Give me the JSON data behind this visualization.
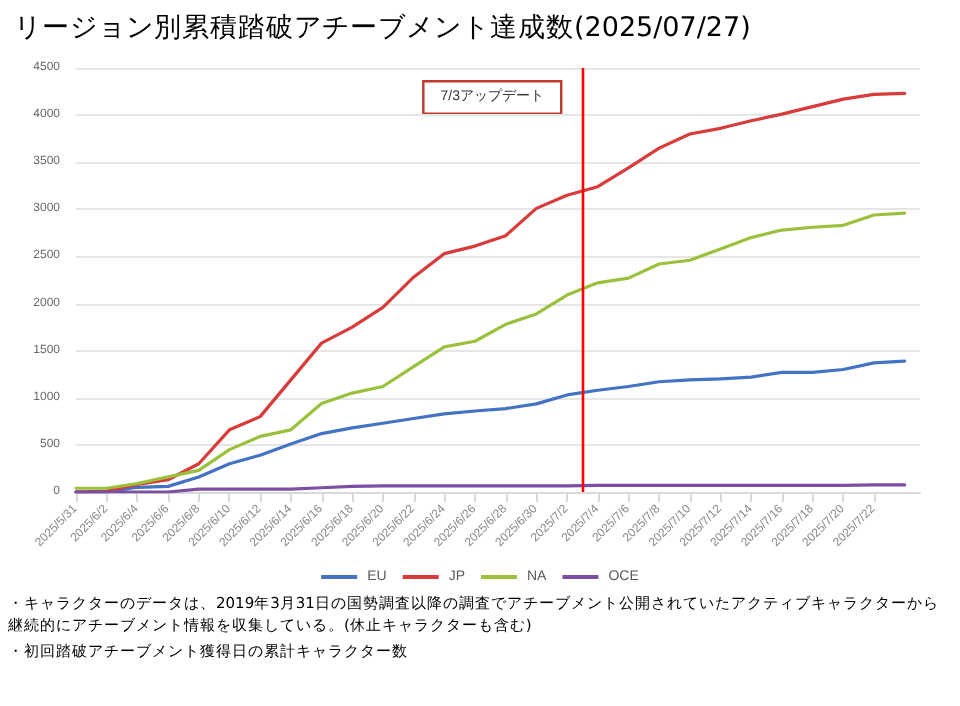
{
  "chart_data": {
    "type": "line",
    "title": "リージョン別累積踏破アチーブメント達成数(2025/07/27)",
    "x": [
      "2025-05-31",
      "2025-06-02",
      "2025-06-04",
      "2025-06-06",
      "2025-06-08",
      "2025-06-10",
      "2025-06-12",
      "2025-06-14",
      "2025-06-16",
      "2025-06-18",
      "2025-06-20",
      "2025-06-22",
      "2025-06-24",
      "2025-06-26",
      "2025-06-28",
      "2025-06-30",
      "2025-07-02",
      "2025-07-04",
      "2025-07-06",
      "2025-07-08",
      "2025-07-10",
      "2025-07-12",
      "2025-07-14",
      "2025-07-16",
      "2025-07-18",
      "2025-07-20",
      "2025-07-22",
      "2025-07-24"
    ],
    "series": [
      {
        "name": "EU",
        "color": "#4472c4",
        "values": [
          0,
          0,
          50,
          60,
          160,
          300,
          390,
          510,
          620,
          680,
          730,
          780,
          830,
          860,
          885,
          935,
          1030,
          1080,
          1120,
          1170,
          1190,
          1200,
          1220,
          1270,
          1270,
          1300,
          1370,
          1390
        ]
      },
      {
        "name": "JP",
        "color": "#d93a3a",
        "values": [
          0,
          10,
          80,
          130,
          300,
          660,
          800,
          1190,
          1580,
          1750,
          1960,
          2280,
          2530,
          2610,
          2720,
          3010,
          3150,
          3240,
          3440,
          3650,
          3800,
          3860,
          3940,
          4010,
          4090,
          4170,
          4220,
          4230
        ]
      },
      {
        "name": "NA",
        "color": "#9bc13c",
        "values": [
          40,
          40,
          90,
          160,
          230,
          450,
          590,
          660,
          940,
          1050,
          1120,
          1330,
          1540,
          1600,
          1780,
          1890,
          2090,
          2220,
          2270,
          2420,
          2460,
          2580,
          2700,
          2780,
          2810,
          2830,
          2940,
          2960
        ]
      },
      {
        "name": "OCE",
        "color": "#7b4fa3",
        "values": [
          0,
          0,
          0,
          0,
          30,
          30,
          30,
          30,
          45,
          60,
          65,
          65,
          65,
          65,
          65,
          65,
          65,
          70,
          70,
          70,
          70,
          70,
          70,
          70,
          70,
          70,
          75,
          75
        ]
      }
    ],
    "xlim": [
      "2025-05-31",
      "2025-07-25"
    ],
    "xticks": [
      {
        "value": "2025-05-31",
        "label": "2025/5/31"
      },
      {
        "value": "2025-06-02",
        "label": "2025/6/2"
      },
      {
        "value": "2025-06-04",
        "label": "2025/6/4"
      },
      {
        "value": "2025-06-06",
        "label": "2025/6/6"
      },
      {
        "value": "2025-06-08",
        "label": "2025/6/8"
      },
      {
        "value": "2025-06-10",
        "label": "2025/6/10"
      },
      {
        "value": "2025-06-12",
        "label": "2025/6/12"
      },
      {
        "value": "2025-06-14",
        "label": "2025/6/14"
      },
      {
        "value": "2025-06-16",
        "label": "2025/6/16"
      },
      {
        "value": "2025-06-18",
        "label": "2025/6/18"
      },
      {
        "value": "2025-06-20",
        "label": "2025/6/20"
      },
      {
        "value": "2025-06-22",
        "label": "2025/6/22"
      },
      {
        "value": "2025-06-24",
        "label": "2025/6/24"
      },
      {
        "value": "2025-06-26",
        "label": "2025/6/26"
      },
      {
        "value": "2025-06-28",
        "label": "2025/6/28"
      },
      {
        "value": "2025-06-30",
        "label": "2025/6/30"
      },
      {
        "value": "2025-07-02",
        "label": "2025/7/2"
      },
      {
        "value": "2025-07-04",
        "label": "2025/7/4"
      },
      {
        "value": "2025-07-06",
        "label": "2025/7/6"
      },
      {
        "value": "2025-07-08",
        "label": "2025/7/8"
      },
      {
        "value": "2025-07-10",
        "label": "2025/7/10"
      },
      {
        "value": "2025-07-12",
        "label": "2025/7/12"
      },
      {
        "value": "2025-07-14",
        "label": "2025/7/14"
      },
      {
        "value": "2025-07-16",
        "label": "2025/7/16"
      },
      {
        "value": "2025-07-18",
        "label": "2025/7/18"
      },
      {
        "value": "2025-07-20",
        "label": "2025/7/20"
      },
      {
        "value": "2025-07-22",
        "label": "2025/7/22"
      }
    ],
    "ylim": [
      0,
      4500
    ],
    "yticks": [
      0,
      500,
      1000,
      1500,
      2000,
      2500,
      3000,
      3500,
      4000,
      4500
    ],
    "ref_lines": [
      {
        "axis": "x",
        "value": "2025-07-03",
        "label": "7/3アップデート",
        "color": "#ff0000"
      }
    ],
    "annotations": [
      "・キャラクターのデータは、2019年3月31日の国勢調査以降の調査でアチーブメント公開されていたアクティブキャラクターから継続的にアチーブメント情報を収集している。(休止キャラクターも含む)",
      "・初回踏破アチーブメント獲得日の累計キャラクター数"
    ],
    "grid": "y",
    "legend": "bottom",
    "marker": "none",
    "line_style": "solid"
  }
}
